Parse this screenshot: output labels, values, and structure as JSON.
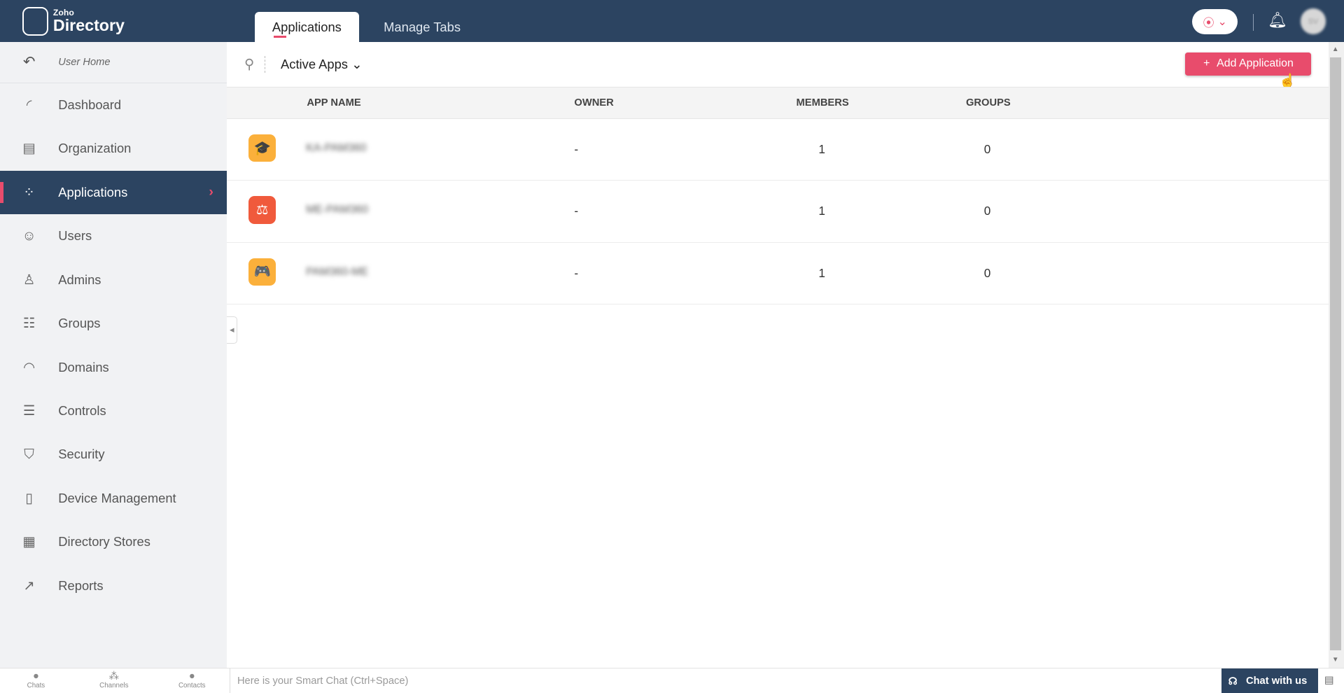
{
  "header": {
    "logo_small": "Zoho",
    "logo_big": "Directory",
    "tabs": [
      {
        "label": "Applications",
        "active": true
      },
      {
        "label": "Manage Tabs",
        "active": false
      }
    ],
    "avatar_initials": "SV"
  },
  "sidebar": {
    "user_home": "User Home",
    "items": [
      {
        "label": "Dashboard",
        "icon": "gauge-icon",
        "glyph": "◜"
      },
      {
        "label": "Organization",
        "icon": "building-icon",
        "glyph": "▤"
      },
      {
        "label": "Applications",
        "icon": "apps-icon",
        "glyph": "⁘",
        "active": true
      },
      {
        "label": "Users",
        "icon": "user-icon",
        "glyph": "☺"
      },
      {
        "label": "Admins",
        "icon": "admin-icon",
        "glyph": "♙"
      },
      {
        "label": "Groups",
        "icon": "groups-icon",
        "glyph": "☷"
      },
      {
        "label": "Domains",
        "icon": "globe-www-icon",
        "glyph": "◠"
      },
      {
        "label": "Controls",
        "icon": "sliders-icon",
        "glyph": "☰"
      },
      {
        "label": "Security",
        "icon": "shield-icon",
        "glyph": "⛉"
      },
      {
        "label": "Device Management",
        "icon": "device-gear-icon",
        "glyph": "▯"
      },
      {
        "label": "Directory Stores",
        "icon": "stores-icon",
        "glyph": "▦"
      },
      {
        "label": "Reports",
        "icon": "chart-icon",
        "glyph": "↗"
      }
    ]
  },
  "toolbar": {
    "filter": "Active Apps",
    "add_label": "Add Application"
  },
  "table": {
    "columns": [
      "APP NAME",
      "OWNER",
      "MEMBERS",
      "GROUPS"
    ],
    "rows": [
      {
        "name": "KA-PAM360",
        "owner": "-",
        "members": "1",
        "groups": "0",
        "icon": "graduation-cap-icon",
        "glyph": "🎓",
        "color": "#fbb03b"
      },
      {
        "name": "ME-PAM360",
        "owner": "-",
        "members": "1",
        "groups": "0",
        "icon": "scales-icon",
        "glyph": "⚖",
        "color": "#f05a3c"
      },
      {
        "name": "PAM360-ME",
        "owner": "-",
        "members": "1",
        "groups": "0",
        "icon": "gamepad-icon",
        "glyph": "🎮",
        "color": "#fbb03b"
      }
    ]
  },
  "bottom": {
    "chats": "Chats",
    "channels": "Channels",
    "contacts": "Contacts",
    "smart_chat_placeholder": "Here is your Smart Chat (Ctrl+Space)",
    "chat_with_us": "Chat with us"
  },
  "colors": {
    "header": "#2c4461",
    "accent": "#e84c6c"
  }
}
